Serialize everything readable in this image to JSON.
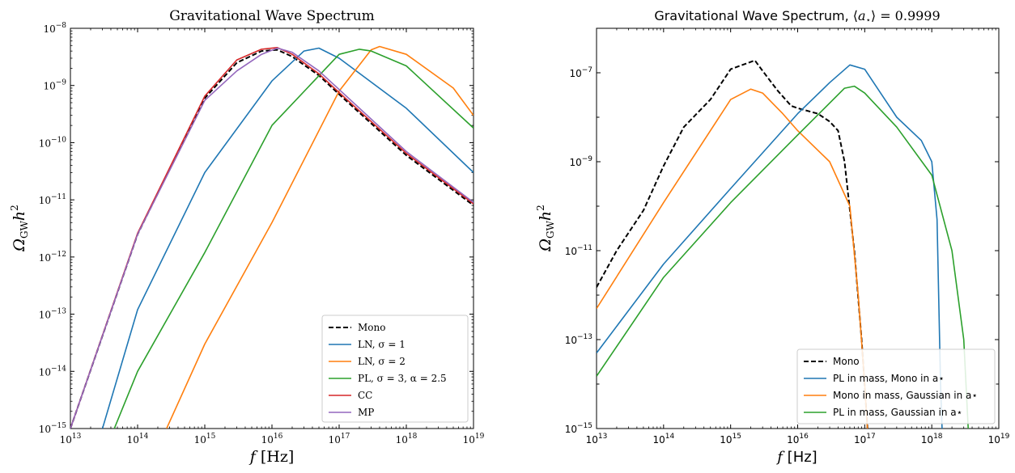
{
  "chart_data": [
    {
      "type": "line",
      "title": "Gravitational Wave Spectrum",
      "xlabel": "f [Hz]",
      "ylabel": "Ω_GW h²",
      "xscale": "log",
      "yscale": "log",
      "xlim": [
        10000000000000.0,
        1e+19
      ],
      "ylim": [
        1e-15,
        1e-08
      ],
      "x_ticks": [
        "10^13",
        "10^14",
        "10^15",
        "10^16",
        "10^17",
        "10^18",
        "10^19"
      ],
      "y_ticks": [
        "10^-15",
        "10^-14",
        "10^-13",
        "10^-12",
        "10^-11",
        "10^-10",
        "10^-9",
        "10^-8"
      ],
      "legend_position": "lower-right",
      "series": [
        {
          "name": "Mono",
          "color": "#000000",
          "dash": true,
          "x": [
            10000000000000.0,
            100000000000000.0,
            1000000000000000.0,
            3000000000000000.0,
            7000000000000000.0,
            1.2e+16,
            2e+16,
            5e+16,
            1e+17,
            1e+18,
            1e+19
          ],
          "y": [
            1e-15,
            2.5e-12,
            6e-10,
            2.5e-09,
            4e-09,
            4.2e-09,
            3.2e-09,
            1.5e-09,
            7e-10,
            6e-11,
            8e-12
          ]
        },
        {
          "name": "LN, σ = 1",
          "color": "#1f77b4",
          "dash": false,
          "x": [
            30000000000000.0,
            100000000000000.0,
            1000000000000000.0,
            1e+16,
            3e+16,
            5e+16,
            1e+17,
            1e+18,
            1e+19
          ],
          "y": [
            1e-15,
            1.2e-13,
            3e-11,
            1.2e-09,
            4e-09,
            4.5e-09,
            3e-09,
            4e-10,
            3e-11
          ]
        },
        {
          "name": "LN, σ = 2",
          "color": "#ff7f0e",
          "dash": false,
          "x": [
            270000000000000.0,
            1000000000000000.0,
            1e+16,
            1e+17,
            3e+17,
            4e+17,
            1e+18,
            5e+18,
            1e+19
          ],
          "y": [
            1e-15,
            3e-14,
            4e-12,
            8e-10,
            4.2e-09,
            4.8e-09,
            3.5e-09,
            9e-10,
            3e-10
          ]
        },
        {
          "name": "PL, σ = 3, α = 2.5",
          "color": "#2ca02c",
          "dash": false,
          "x": [
            45000000000000.0,
            100000000000000.0,
            1000000000000000.0,
            1e+16,
            1e+17,
            2e+17,
            3e+17,
            1e+18,
            1e+19
          ],
          "y": [
            1e-15,
            1e-14,
            1.2e-12,
            2e-10,
            3.5e-09,
            4.3e-09,
            4e-09,
            2.2e-09,
            1.8e-10
          ]
        },
        {
          "name": "CC",
          "color": "#d62728",
          "dash": false,
          "x": [
            10000000000000.0,
            100000000000000.0,
            1000000000000000.0,
            3000000000000000.0,
            7000000000000000.0,
            1.2e+16,
            2e+16,
            5e+16,
            1e+17,
            1e+18,
            1e+19
          ],
          "y": [
            1e-15,
            2.6e-12,
            6.5e-10,
            2.8e-09,
            4.3e-09,
            4.6e-09,
            3.5e-09,
            1.6e-09,
            7.5e-10,
            6.5e-11,
            8.5e-12
          ]
        },
        {
          "name": "MP",
          "color": "#9467bd",
          "dash": false,
          "x": [
            10000000000000.0,
            100000000000000.0,
            1000000000000000.0,
            3000000000000000.0,
            7000000000000000.0,
            1.2e+16,
            2e+16,
            5e+16,
            1e+17,
            1e+18,
            1e+19
          ],
          "y": [
            1e-15,
            2.5e-12,
            5.5e-10,
            1.8e-09,
            3.5e-09,
            4.5e-09,
            3.8e-09,
            1.8e-09,
            8.5e-10,
            7e-11,
            9e-12
          ]
        }
      ]
    },
    {
      "type": "line",
      "title": "Gravitational Wave Spectrum, ⟨a⋆⟩ = 0.9999",
      "xlabel": "f [Hz]",
      "ylabel": "Ω_GW h²",
      "xscale": "log",
      "yscale": "log",
      "xlim": [
        10000000000000.0,
        1e+19
      ],
      "ylim": [
        1e-15,
        1e-06
      ],
      "x_ticks": [
        "10^13",
        "10^14",
        "10^15",
        "10^16",
        "10^17",
        "10^18",
        "10^19"
      ],
      "y_ticks": [
        "10^-15",
        "10^-13",
        "10^-11",
        "10^-9",
        "10^-7"
      ],
      "legend_position": "lower-right",
      "series": [
        {
          "name": "Mono",
          "color": "#000000",
          "dash": true,
          "x": [
            10000000000000.0,
            20000000000000.0,
            50000000000000.0,
            100000000000000.0,
            200000000000000.0,
            500000000000000.0,
            1000000000000000.0,
            2300000000000000.0,
            3000000000000000.0,
            5000000000000000.0,
            8000000000000000.0,
            1e+16,
            2e+16,
            3e+16,
            4e+16,
            5e+16,
            7e+16,
            9e+16,
            1.1e+17,
            1.5e+17
          ],
          "y": [
            1.5e-12,
            1e-11,
            8e-11,
            8e-10,
            6e-09,
            2.5e-08,
            1.2e-07,
            1.9e-07,
            1.1e-07,
            4e-08,
            1.8e-08,
            1.6e-08,
            1.2e-08,
            8e-09,
            5e-09,
            1e-09,
            1e-11,
            1e-13,
            1e-15,
            1e-16
          ]
        },
        {
          "name": "PL in mass, Mono in a⋆",
          "color": "#1f77b4",
          "dash": false,
          "x": [
            10000000000000.0,
            100000000000000.0,
            1000000000000000.0,
            1e+16,
            3e+16,
            6e+16,
            1e+17,
            3e+17,
            7e+17,
            1e+18,
            1.2e+18,
            1.35e+18,
            1.5e+18
          ],
          "y": [
            5e-14,
            5e-12,
            2.5e-10,
            1.2e-08,
            6e-08,
            1.5e-07,
            1.2e-07,
            1e-08,
            3e-09,
            1e-09,
            5e-11,
            1e-14,
            1e-16
          ]
        },
        {
          "name": "Mono in mass, Gaussian in a⋆",
          "color": "#ff7f0e",
          "dash": false,
          "x": [
            10000000000000.0,
            100000000000000.0,
            1000000000000000.0,
            2000000000000000.0,
            3000000000000000.0,
            6000000000000000.0,
            1e+16,
            3e+16,
            6e+16,
            8e+16,
            1e+17,
            1.2e+17
          ],
          "y": [
            5e-13,
            1.2e-10,
            2.5e-08,
            4.3e-08,
            3.5e-08,
            1.2e-08,
            5e-09,
            1e-09,
            1e-10,
            1e-12,
            1e-14,
            1e-16
          ]
        },
        {
          "name": "PL in mass, Gaussian in a⋆",
          "color": "#2ca02c",
          "dash": false,
          "x": [
            10000000000000.0,
            100000000000000.0,
            1000000000000000.0,
            1e+16,
            5e+16,
            7e+16,
            1e+17,
            3e+17,
            1e+18,
            2e+18,
            3e+18,
            3.5e+18,
            4e+18
          ],
          "y": [
            1.5e-14,
            2.5e-12,
            1.2e-10,
            4e-09,
            4.5e-08,
            5e-08,
            3.5e-08,
            6e-09,
            5e-10,
            1e-11,
            1e-13,
            1e-15,
            1e-16
          ]
        }
      ]
    }
  ]
}
